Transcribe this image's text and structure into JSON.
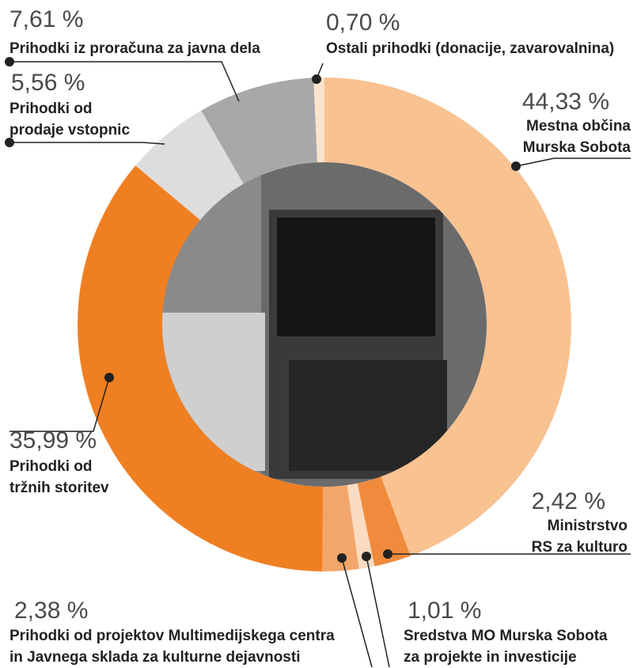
{
  "chart_data": {
    "type": "donut",
    "categories": [
      "Mestna občina\nMurska Sobota",
      "Ministrstvo\nRS za kulturo",
      "Sredstva MO Murska Sobota\nza projekte in investicije",
      "Prihodki od projektov Multimedijskega centra\nin Javnega sklada za kulturne dejavnosti",
      "Prihodki od\ntržnih storitev",
      "Prihodki od\nprodaje vstopnic",
      "Prihodki iz proračuna za javna dela",
      "Ostali prihodki (donacije, zavarovalnina)"
    ],
    "values": [
      44.33,
      2.42,
      1.01,
      2.38,
      35.99,
      5.56,
      7.61,
      0.7
    ],
    "value_labels": [
      "44,33 %",
      "2,42 %",
      "1,01 %",
      "2,38 %",
      "35,99 %",
      "5,56 %",
      "7,61 %",
      "0,70 %"
    ],
    "colors": [
      "#f8c291",
      "#f08b3e",
      "#fbdcc2",
      "#f3a66b",
      "#f07f22",
      "#dddddd",
      "#a8a8aa",
      "#fde3cc"
    ]
  }
}
